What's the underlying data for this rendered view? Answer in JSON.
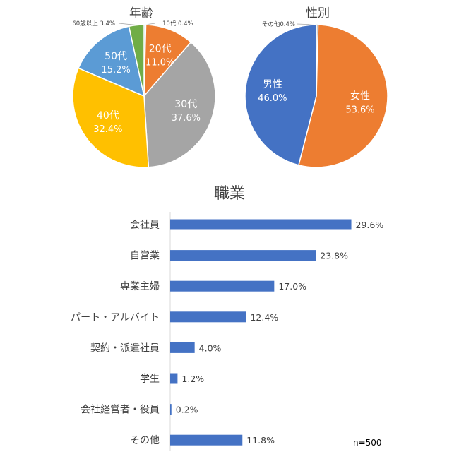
{
  "chart_data": [
    {
      "type": "pie",
      "title": "年齢",
      "slices": [
        {
          "label": "10代",
          "pct_label": "0.4%",
          "value": 0.4,
          "color": "#5b9bd5",
          "inside": false
        },
        {
          "label": "20代",
          "pct_label": "11.0%",
          "value": 11.0,
          "color": "#ed7d31",
          "inside": true
        },
        {
          "label": "30代",
          "pct_label": "37.6%",
          "value": 37.6,
          "color": "#a5a5a5",
          "inside": true
        },
        {
          "label": "40代",
          "pct_label": "32.4%",
          "value": 32.4,
          "color": "#ffc000",
          "inside": true
        },
        {
          "label": "50代",
          "pct_label": "15.2%",
          "value": 15.2,
          "color": "#5b9bd5",
          "inside": true
        },
        {
          "label": "60歳以上",
          "pct_label": "3.4%",
          "value": 3.4,
          "color": "#70ad47",
          "inside": false
        }
      ]
    },
    {
      "type": "pie",
      "title": "性別",
      "slices": [
        {
          "label": "その他",
          "pct_label": "0.4%",
          "value": 0.4,
          "color": "#a5a5a5",
          "inside": false
        },
        {
          "label": "女性",
          "pct_label": "53.6%",
          "value": 53.6,
          "color": "#ed7d31",
          "inside": true
        },
        {
          "label": "男性",
          "pct_label": "46.0%",
          "value": 46.0,
          "color": "#4472c4",
          "inside": true
        }
      ]
    },
    {
      "type": "bar",
      "orientation": "horizontal",
      "title": "職業",
      "categories": [
        "会社員",
        "自営業",
        "専業主婦",
        "パート・アルバイト",
        "契約・派遣社員",
        "学生",
        "会社経営者・役員",
        "その他"
      ],
      "values": [
        29.6,
        23.8,
        17.0,
        12.4,
        4.0,
        1.2,
        0.2,
        11.8
      ],
      "value_labels": [
        "29.6%",
        "23.8%",
        "17.0%",
        "12.4%",
        "4.0%",
        "1.2%",
        "0.2%",
        "11.8%"
      ],
      "color": "#4472c4",
      "note": "n=500"
    }
  ]
}
